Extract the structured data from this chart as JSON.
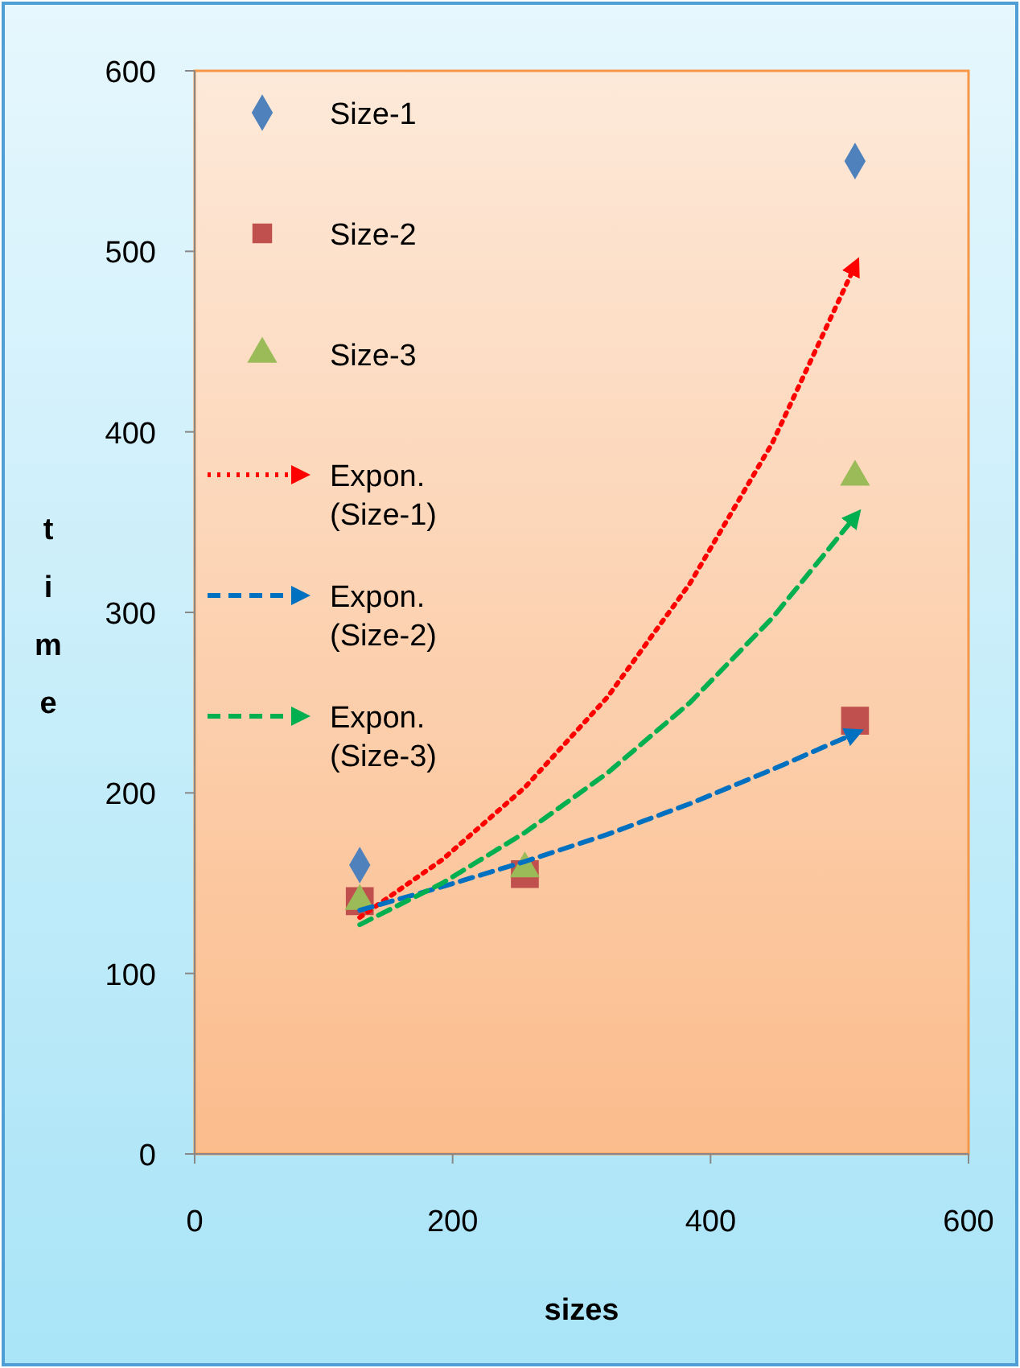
{
  "chart_data": {
    "type": "scatter",
    "xlabel": "sizes",
    "ylabel": "time",
    "x": [
      128,
      256,
      512
    ],
    "xlim": [
      0,
      600
    ],
    "xticks": [
      0,
      200,
      400,
      600
    ],
    "ylim": [
      0,
      600
    ],
    "yticks": [
      0,
      100,
      200,
      300,
      400,
      500,
      600
    ],
    "grid": false,
    "legend": "top left",
    "series": [
      {
        "name": "Size-1",
        "color": "#4f81bd",
        "marker": "diamond",
        "values": [
          160,
          null,
          550
        ]
      },
      {
        "name": "Size-2",
        "color": "#c0504d",
        "marker": "square",
        "values": [
          140,
          155,
          240
        ]
      },
      {
        "name": "Size-3",
        "color": "#9bbb59",
        "marker": "triangle",
        "values": [
          140,
          158,
          375
        ]
      },
      {
        "name": "Expon. (Size-1)",
        "type": "line",
        "color": "#ff0000",
        "line_style": "dotted",
        "marker": "none",
        "x": [
          128,
          192,
          256,
          320,
          384,
          448,
          512
        ],
        "values": [
          131,
          163,
          203,
          253,
          316,
          394,
          492
        ]
      },
      {
        "name": "Expon. (Size-2)",
        "type": "line",
        "color": "#0070c0",
        "line_style": "dashed",
        "marker": "none",
        "x": [
          128,
          192,
          256,
          320,
          384,
          448,
          512
        ],
        "values": [
          135,
          148,
          162,
          177,
          194,
          213,
          233
        ]
      },
      {
        "name": "Expon. (Size-3)",
        "type": "line",
        "color": "#00b050",
        "line_style": "dashed",
        "marker": "none",
        "x": [
          128,
          192,
          256,
          320,
          384,
          448,
          512
        ],
        "values": [
          127,
          150,
          178,
          211,
          250,
          297,
          353
        ]
      }
    ]
  }
}
